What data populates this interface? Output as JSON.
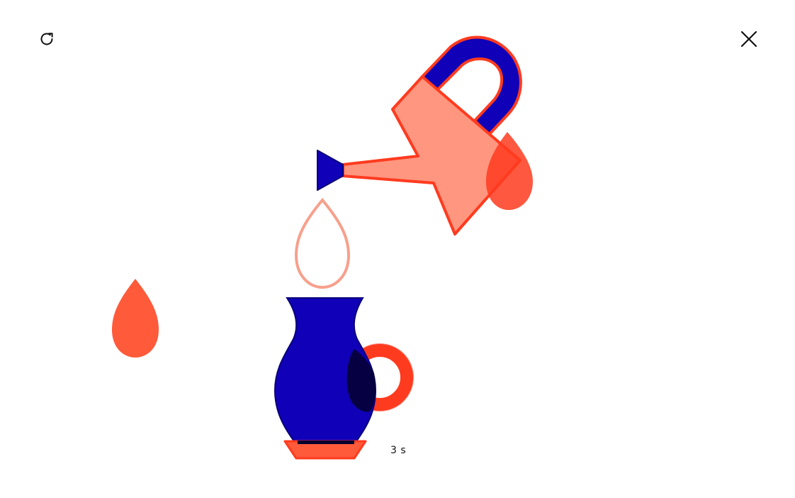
{
  "controls": {
    "restart_icon": "refresh-icon",
    "close_icon": "close-icon"
  },
  "status": {
    "timer": "3 s"
  },
  "colors": {
    "blue": "#1000b8",
    "blue_dark": "#0a0078",
    "red": "#ff3b1f",
    "red_light": "#ff9680",
    "drop_orange": "#ff5a3a",
    "outline_drop": "#f7a08c"
  }
}
